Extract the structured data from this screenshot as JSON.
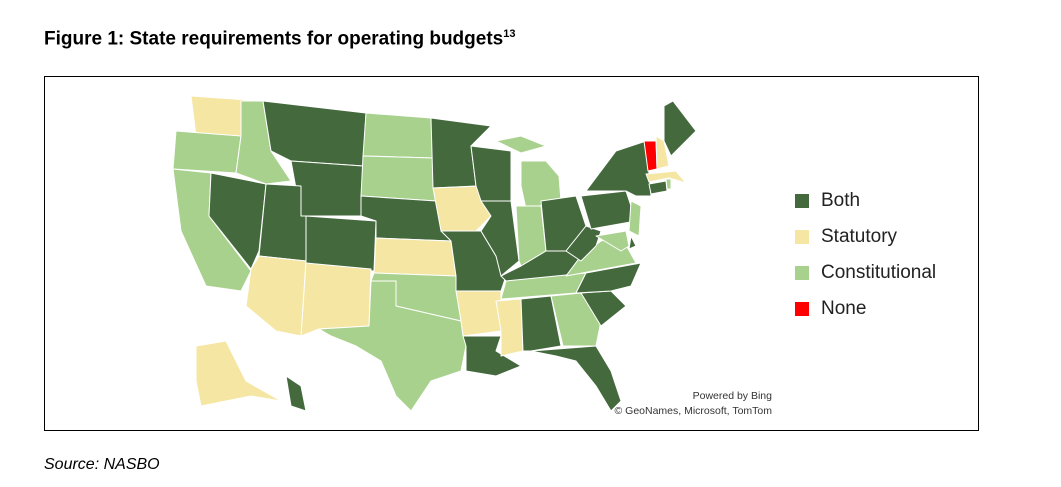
{
  "title": "Figure 1: State requirements for operating budgets",
  "title_footnote": "13",
  "legend": [
    {
      "key": "both",
      "label": "Both",
      "color": "#44693d"
    },
    {
      "key": "statutory",
      "label": "Statutory",
      "color": "#f5e6a3"
    },
    {
      "key": "constitutional",
      "label": "Constitutional",
      "color": "#a9d18e"
    },
    {
      "key": "none",
      "label": "None",
      "color": "#ff0000"
    }
  ],
  "states": {
    "WA": "statutory",
    "OR": "constitutional",
    "CA": "constitutional",
    "NV": "both",
    "ID": "constitutional",
    "MT": "both",
    "WY": "both",
    "UT": "both",
    "CO": "both",
    "AZ": "statutory",
    "NM": "statutory",
    "ND": "constitutional",
    "SD": "constitutional",
    "NE": "both",
    "KS": "statutory",
    "OK": "constitutional",
    "TX": "constitutional",
    "MN": "both",
    "IA": "statutory",
    "MO": "both",
    "AR": "statutory",
    "LA": "both",
    "WI": "both",
    "IL": "both",
    "MI": "constitutional",
    "IN": "constitutional",
    "OH": "both",
    "KY": "both",
    "TN": "constitutional",
    "MS": "statutory",
    "AL": "both",
    "GA": "constitutional",
    "FL": "both",
    "SC": "both",
    "NC": "both",
    "VA": "constitutional",
    "WV": "both",
    "PA": "both",
    "NY": "both",
    "NJ": "constitutional",
    "MD": "constitutional",
    "DE": "both",
    "CT": "both",
    "RI": "constitutional",
    "MA": "statutory",
    "VT": "none",
    "NH": "statutory",
    "ME": "both",
    "AK": "statutory",
    "HI": "both"
  },
  "credits": {
    "line1": "Powered by Bing",
    "line2": "© GeoNames, Microsoft, TomTom"
  },
  "source": "Source: NASBO"
}
